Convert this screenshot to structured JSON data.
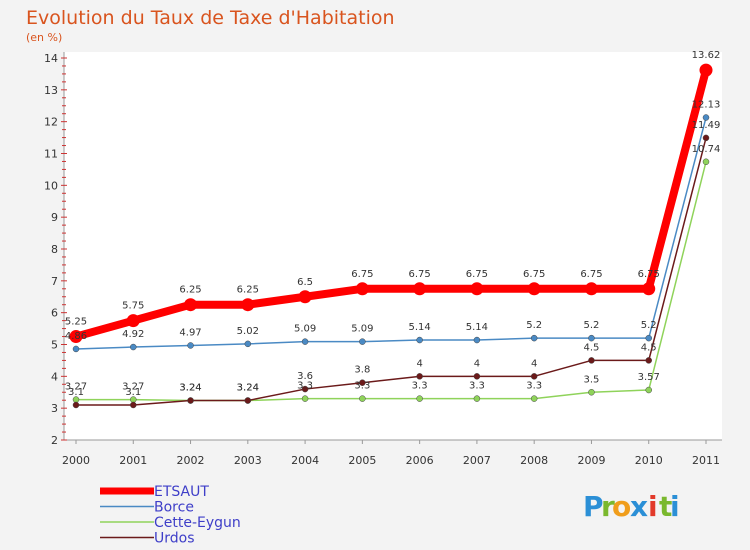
{
  "chart_data": {
    "type": "line",
    "title": "Evolution du Taux de Taxe d'Habitation",
    "subtitle": "(en %)",
    "xlabel": "",
    "ylabel": "",
    "categories": [
      "2000",
      "2001",
      "2002",
      "2003",
      "2004",
      "2005",
      "2006",
      "2007",
      "2008",
      "2009",
      "2010",
      "2011"
    ],
    "ylim": [
      2,
      14
    ],
    "yticks": [
      2,
      3,
      4,
      5,
      6,
      7,
      8,
      9,
      10,
      11,
      12,
      13,
      14
    ],
    "grid": false,
    "legend_position": "bottom-left",
    "series": [
      {
        "name": "ETSAUT",
        "color": "#ff0000",
        "values": [
          5.25,
          5.75,
          6.25,
          6.25,
          6.5,
          6.75,
          6.75,
          6.75,
          6.75,
          6.75,
          6.75,
          13.62
        ],
        "labels": [
          "5.25",
          "5.75",
          "6.25",
          "6.25",
          "6.5",
          "6.75",
          "6.75",
          "6.75",
          "6.75",
          "6.75",
          "6.75",
          "13.62"
        ]
      },
      {
        "name": "Borce",
        "color": "#4a8ac4",
        "values": [
          4.86,
          4.92,
          4.97,
          5.02,
          5.09,
          5.09,
          5.14,
          5.14,
          5.2,
          5.2,
          5.2,
          12.13
        ],
        "labels": [
          "4.86",
          "4.92",
          "4.97",
          "5.02",
          "5.09",
          "5.09",
          "5.14",
          "5.14",
          "5.2",
          "5.2",
          "5.2",
          "12.13"
        ]
      },
      {
        "name": "Cette-Eygun",
        "color": "#8fd35a",
        "values": [
          3.27,
          3.27,
          3.24,
          3.24,
          3.3,
          3.3,
          3.3,
          3.3,
          3.3,
          3.5,
          3.57,
          10.74
        ],
        "labels": [
          "3.27",
          "3.27",
          "3.24",
          "3.24",
          "3.3",
          "3.3",
          "3.3",
          "3.3",
          "3.3",
          "3.5",
          "3.57",
          "10.74"
        ]
      },
      {
        "name": "Urdos",
        "color": "#6b1a1a",
        "values": [
          3.1,
          3.1,
          3.24,
          3.24,
          3.6,
          3.8,
          4,
          4,
          4,
          4.5,
          4.5,
          11.49
        ],
        "labels": [
          "3.1",
          "3.1",
          "3.24",
          "3.24",
          "3.6",
          "3.8",
          "4",
          "4",
          "4",
          "4.5",
          "4.5",
          "11.49"
        ]
      }
    ]
  },
  "brand": {
    "letters": [
      "P",
      "r",
      "o",
      "x",
      "i",
      "t",
      "i"
    ],
    "colors": [
      "#2b8fd6",
      "#7ab82e",
      "#f09d1b",
      "#2b8fd6",
      "#e23a2a",
      "#7ab82e",
      "#2b8fd6"
    ]
  }
}
